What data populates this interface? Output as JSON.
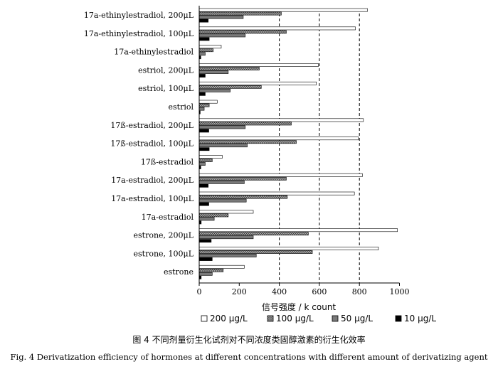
{
  "chart_data": {
    "type": "bar",
    "orientation": "horizontal",
    "categories": [
      "17a-ethinylestradiol, 200μL",
      "17a-ethinylestradiol, 100μL",
      "17a-ethinylestradiol",
      "estriol, 200μL",
      "estriol, 100μL",
      "estriol",
      "17ß-estradiol, 200μL",
      "17ß-estradiol, 100μL",
      "17ß-estradiol",
      "17a-estradiol, 200μL",
      "17a-estradiol, 100μL",
      "17a-estradiol",
      "estrone, 200μL",
      "estrone, 100μL",
      "estrone"
    ],
    "series": [
      {
        "name": "200 μg/L",
        "color": "#ffffff",
        "pattern": "none",
        "values": [
          840,
          780,
          110,
          595,
          585,
          90,
          820,
          795,
          115,
          815,
          775,
          270,
          990,
          895,
          225
        ]
      },
      {
        "name": "100 μg/L",
        "color": "#909090",
        "pattern": "crosshatch",
        "values": [
          410,
          435,
          70,
          300,
          310,
          50,
          460,
          485,
          65,
          435,
          440,
          145,
          545,
          565,
          120
        ]
      },
      {
        "name": "50 μg/L",
        "color": "#7a7a7a",
        "pattern": "solid",
        "values": [
          220,
          230,
          30,
          145,
          155,
          25,
          230,
          240,
          30,
          225,
          235,
          75,
          270,
          285,
          65
        ]
      },
      {
        "name": "10 μg/L",
        "color": "#000000",
        "pattern": "solid",
        "values": [
          45,
          50,
          8,
          30,
          30,
          5,
          48,
          50,
          8,
          45,
          48,
          10,
          60,
          65,
          10
        ]
      }
    ],
    "xlim": [
      0,
      1000
    ],
    "xticks": [
      "0",
      "200",
      "400",
      "600",
      "800",
      "1000"
    ],
    "gridlines_x": [
      400,
      600,
      800
    ],
    "grid_style": "dashed",
    "xlabel": "信号强度 / k count",
    "legend_position": "bottom"
  },
  "caption": {
    "cn": "图 4    不同剂量衍生化试剂对不同浓度类固醇激素的衍生化效率",
    "en": "Fig. 4    Derivatization efficiency of hormones at different concentrations with different amount of derivatizing agent"
  }
}
